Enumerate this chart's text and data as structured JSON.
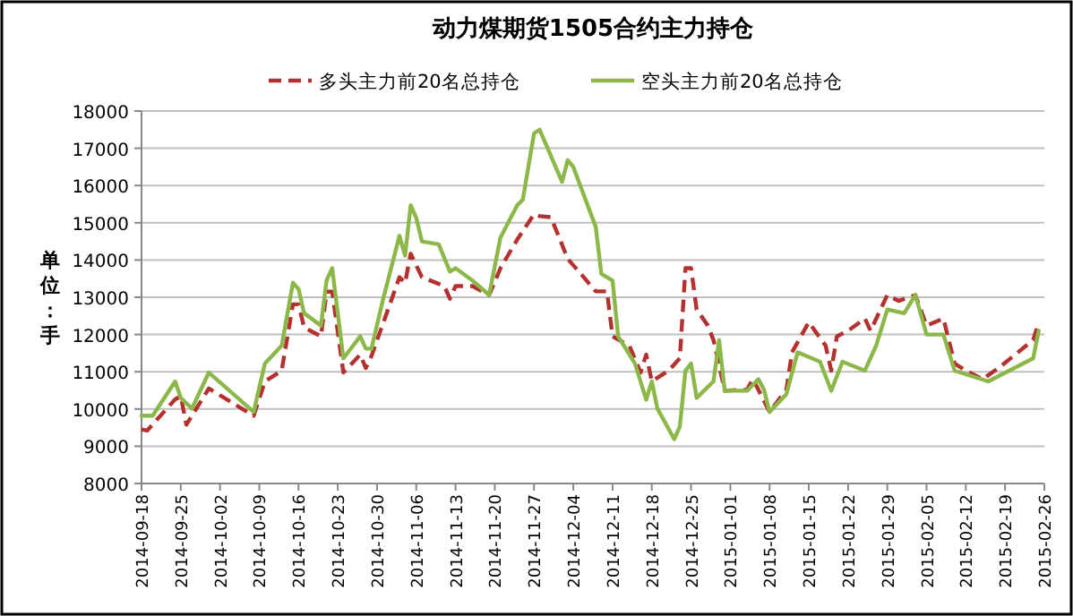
{
  "chart_data": {
    "type": "line",
    "title": "动力煤期货1505合约主力持仓",
    "ylabel": "单位：手",
    "legend": "top",
    "grid": "y",
    "xlim": [
      "2014-09-18",
      "2015-02-26"
    ],
    "xticks": [
      "2014-09-18",
      "2014-09-25",
      "2014-10-02",
      "2014-10-09",
      "2014-10-16",
      "2014-10-23",
      "2014-10-30",
      "2014-11-06",
      "2014-11-13",
      "2014-11-20",
      "2014-11-27",
      "2014-12-04",
      "2014-12-11",
      "2014-12-18",
      "2014-12-25",
      "2015-01-01",
      "2015-01-08",
      "2015-01-15",
      "2015-01-22",
      "2015-01-29",
      "2015-02-05",
      "2015-02-12",
      "2015-02-19",
      "2015-02-26"
    ],
    "ylim": [
      8000,
      18000
    ],
    "yticks": [
      8000,
      9000,
      10000,
      11000,
      12000,
      13000,
      14000,
      15000,
      16000,
      17000,
      18000
    ],
    "series": [
      {
        "name": "多头主力前20名总持仓",
        "color": "#b5312f",
        "line_style": "dashed",
        "x": [
          "2014-09-18",
          "2014-09-19",
          "2014-09-24",
          "2014-09-25",
          "2014-09-26",
          "2014-09-30",
          "2014-10-08",
          "2014-10-10",
          "2014-10-13",
          "2014-10-15",
          "2014-10-16",
          "2014-10-17",
          "2014-10-20",
          "2014-10-21",
          "2014-10-22",
          "2014-10-24",
          "2014-10-27",
          "2014-10-28",
          "2014-10-29",
          "2014-11-03",
          "2014-11-04",
          "2014-11-05",
          "2014-11-07",
          "2014-11-11",
          "2014-11-12",
          "2014-11-13",
          "2014-11-16",
          "2014-11-19",
          "2014-11-21",
          "2014-11-24",
          "2014-11-27",
          "2014-11-28",
          "2014-11-30",
          "2014-12-02",
          "2014-12-03",
          "2014-12-05",
          "2014-12-08",
          "2014-12-10",
          "2014-12-11",
          "2014-12-14",
          "2014-12-16",
          "2014-12-17",
          "2014-12-18",
          "2014-12-21",
          "2014-12-23",
          "2014-12-24",
          "2014-12-25",
          "2014-12-26",
          "2014-12-28",
          "2014-12-29",
          "2014-12-31",
          "2015-01-04",
          "2015-01-05",
          "2015-01-06",
          "2015-01-08",
          "2015-01-11",
          "2015-01-12",
          "2015-01-15",
          "2015-01-18",
          "2015-01-19",
          "2015-01-20",
          "2015-01-22",
          "2015-01-25",
          "2015-01-26",
          "2015-01-29",
          "2015-01-31",
          "2015-02-03",
          "2015-02-05",
          "2015-02-08",
          "2015-02-10",
          "2015-02-12",
          "2015-02-15",
          "2015-02-18",
          "2015-02-24",
          "2015-02-25"
        ],
        "values": [
          9450,
          9420,
          10260,
          10340,
          9580,
          10550,
          9820,
          10740,
          11030,
          12810,
          12810,
          12190,
          11950,
          13150,
          13150,
          10980,
          11460,
          11100,
          11420,
          13540,
          13380,
          14170,
          13540,
          13300,
          12960,
          13300,
          13300,
          13060,
          13780,
          14550,
          15230,
          15180,
          15150,
          14410,
          14030,
          13690,
          13160,
          13160,
          11950,
          11700,
          10980,
          11460,
          10740,
          11030,
          11360,
          13780,
          13780,
          12670,
          12240,
          11850,
          10490,
          10520,
          10800,
          10520,
          9920,
          10520,
          11520,
          12330,
          11700,
          11030,
          11950,
          12100,
          12430,
          12100,
          13060,
          12900,
          13060,
          12240,
          12430,
          11220,
          11030,
          10800,
          11120,
          11850,
          12330
        ]
      },
      {
        "name": "空头主力前20名总持仓",
        "color": "#8cb84a",
        "line_style": "solid",
        "x": [
          "2014-09-18",
          "2014-09-20",
          "2014-09-24",
          "2014-09-25",
          "2014-09-27",
          "2014-09-30",
          "2014-10-08",
          "2014-10-10",
          "2014-10-13",
          "2014-10-15",
          "2014-10-16",
          "2014-10-17",
          "2014-10-20",
          "2014-10-21",
          "2014-10-22",
          "2014-10-24",
          "2014-10-27",
          "2014-10-28",
          "2014-10-29",
          "2014-10-31",
          "2014-11-03",
          "2014-11-04",
          "2014-11-05",
          "2014-11-06",
          "2014-11-07",
          "2014-11-10",
          "2014-11-12",
          "2014-11-13",
          "2014-11-16",
          "2014-11-19",
          "2014-11-21",
          "2014-11-24",
          "2014-11-25",
          "2014-11-27",
          "2014-11-28",
          "2014-12-02",
          "2014-12-03",
          "2014-12-04",
          "2014-12-08",
          "2014-12-09",
          "2014-12-11",
          "2014-12-12",
          "2014-12-15",
          "2014-12-17",
          "2014-12-18",
          "2014-12-19",
          "2014-12-22",
          "2014-12-23",
          "2014-12-24",
          "2014-12-25",
          "2014-12-26",
          "2014-12-29",
          "2014-12-30",
          "2014-12-31",
          "2015-01-04",
          "2015-01-06",
          "2015-01-07",
          "2015-01-08",
          "2015-01-11",
          "2015-01-13",
          "2015-01-17",
          "2015-01-19",
          "2015-01-21",
          "2015-01-25",
          "2015-01-27",
          "2015-01-29",
          "2015-02-01",
          "2015-02-03",
          "2015-02-05",
          "2015-02-08",
          "2015-02-10",
          "2015-02-16",
          "2015-02-24",
          "2015-02-25"
        ],
        "values": [
          9820,
          9820,
          10740,
          10300,
          10010,
          10980,
          9920,
          11220,
          11700,
          13390,
          13220,
          12570,
          12240,
          13450,
          13780,
          11360,
          11950,
          11620,
          11620,
          12900,
          14650,
          14120,
          15470,
          15130,
          14500,
          14420,
          13690,
          13780,
          13450,
          13060,
          14600,
          15470,
          15620,
          17400,
          17500,
          16100,
          16680,
          16500,
          14890,
          13630,
          13450,
          11950,
          11220,
          10250,
          10740,
          10010,
          9190,
          9530,
          11030,
          11220,
          10300,
          10740,
          11850,
          10490,
          10490,
          10800,
          10520,
          9920,
          10400,
          11520,
          11270,
          10490,
          11270,
          11030,
          11700,
          12670,
          12570,
          13060,
          12000,
          12000,
          11030,
          10740,
          11360,
          12100
        ]
      }
    ]
  }
}
